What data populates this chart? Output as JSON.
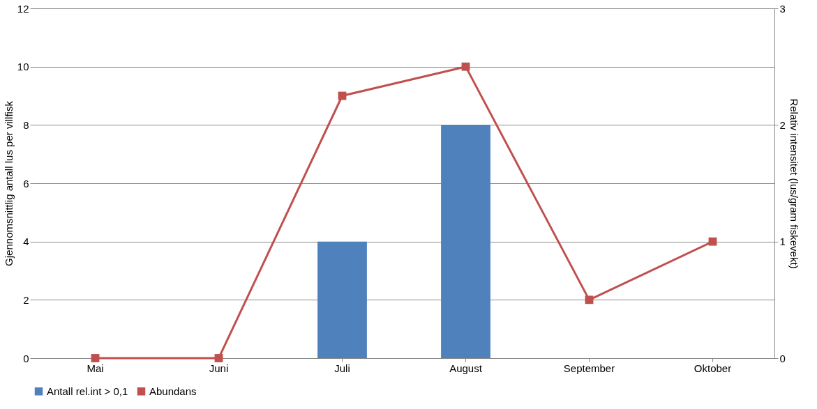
{
  "chart_data": {
    "type": "bar",
    "categories": [
      "Mai",
      "Juni",
      "Juli",
      "August",
      "September",
      "Oktober"
    ],
    "ylabel": "Gjennomsnittlig antall lus per villfisk",
    "y2label": "Relativ intensitet (lus/gram fiskevekt)",
    "ylim": [
      0,
      12
    ],
    "yticks": [
      0,
      2,
      4,
      6,
      8,
      10,
      12
    ],
    "y2lim": [
      0,
      3
    ],
    "y2ticks": [
      0,
      1,
      2,
      3
    ],
    "series": [
      {
        "name": "Antall rel.int > 0,1",
        "axis": "y2",
        "color": "#4f81bd",
        "values": [
          null,
          null,
          1,
          2,
          null,
          null
        ]
      },
      {
        "name": "Abundans",
        "type": "line",
        "axis": "y",
        "color": "#c0504d",
        "marker": "square",
        "values": [
          0,
          0,
          9,
          10,
          2,
          4
        ]
      }
    ],
    "grid": "y",
    "legend": "bottom"
  }
}
